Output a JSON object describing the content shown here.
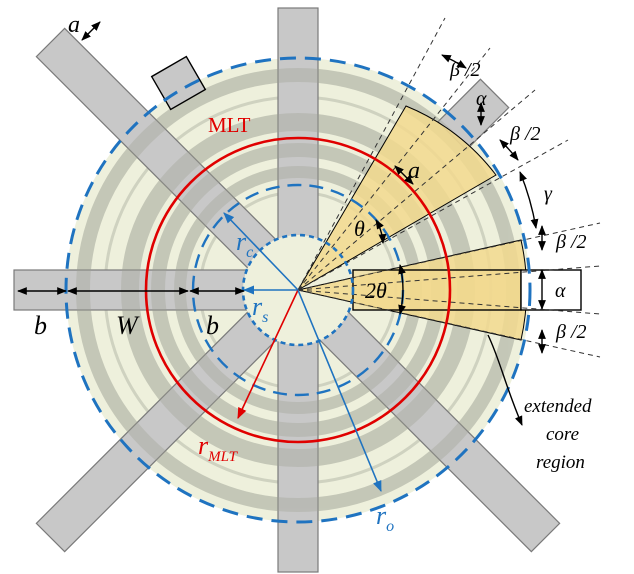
{
  "labels": {
    "a_top": "a",
    "mlt": "MLT",
    "a_slot": "a",
    "theta": "θ",
    "two_theta": "2θ",
    "r_c_main": "r",
    "r_c_sub": "c",
    "r_s_main": "r",
    "r_s_sub": "s",
    "r_mlt_main": "r",
    "r_mlt_sub": "MLT",
    "r_o_main": "r",
    "r_o_sub": "o",
    "b_left": "b",
    "w": "W",
    "b_right": "b",
    "beta_half_1": "β /2",
    "alpha_1": "α",
    "beta_half_2": "β /2",
    "gamma": "γ",
    "beta_half_3": "β /2",
    "alpha_2": "α",
    "beta_half_4": "β /2",
    "extended_line1": "extended",
    "extended_line2": "core",
    "extended_line3": "region"
  },
  "colors": {
    "background_disc": "#eef0dc",
    "winding_ring": "#d9dccb",
    "core_bar": "#c8c8c8",
    "core_bar_overlay": "#b4b6ae",
    "sector_fill": "#f2d98e",
    "outer_circle_dashed": "#1f73c0",
    "inner_circle_dashed": "#1f73c0",
    "mlt_circle": "#e00000",
    "radius_blue": "#1f73c0",
    "radius_red": "#e00000"
  }
}
